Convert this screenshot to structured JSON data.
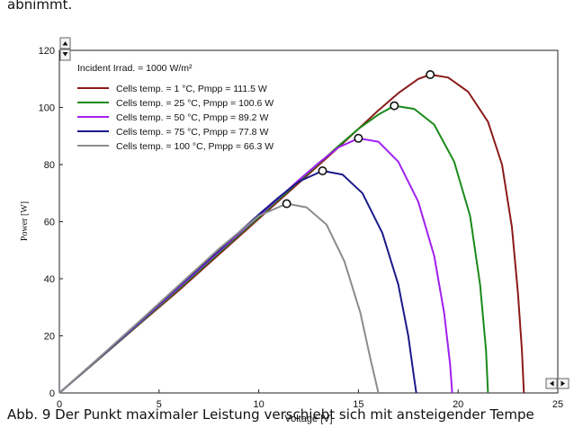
{
  "document": {
    "top_text": "abnimmt.",
    "caption": "Abb. 9 Der Punkt maximaler Leistung verschiebt sich mit ansteigender Tempe"
  },
  "chart_data": {
    "type": "line",
    "title": "",
    "xlabel": "Voltage [V]",
    "ylabel": "Power [W]",
    "xlim": [
      0,
      25
    ],
    "ylim": [
      0,
      120
    ],
    "xticks": [
      0,
      5,
      10,
      15,
      20,
      25
    ],
    "yticks": [
      0,
      20,
      40,
      60,
      80,
      100,
      120
    ],
    "grid": false,
    "legend_position": "top-left",
    "legend_header": "Incident Irrad. = 1000 W/m²",
    "series": [
      {
        "name": "Cells temp. = 1 °C,  Pmpp = 111.5 W",
        "color": "#8b1a1a",
        "mpp": [
          18.6,
          111.5
        ],
        "points": [
          [
            0,
            0
          ],
          [
            2,
            12
          ],
          [
            4,
            24
          ],
          [
            6,
            36
          ],
          [
            8,
            48.5
          ],
          [
            10,
            61
          ],
          [
            12,
            73.5
          ],
          [
            14,
            86
          ],
          [
            15,
            92.5
          ],
          [
            16,
            99
          ],
          [
            17,
            105
          ],
          [
            18,
            110
          ],
          [
            18.6,
            111.5
          ],
          [
            19.5,
            110.5
          ],
          [
            20.5,
            105.5
          ],
          [
            21.5,
            95
          ],
          [
            22.2,
            80
          ],
          [
            22.7,
            58
          ],
          [
            23.0,
            35
          ],
          [
            23.2,
            15
          ],
          [
            23.3,
            0
          ]
        ]
      },
      {
        "name": "Cells temp. = 25 °C,  Pmpp = 100.6 W",
        "color": "#1a8a1a",
        "mpp": [
          16.8,
          100.6
        ],
        "points": [
          [
            0,
            0
          ],
          [
            2,
            12
          ],
          [
            4,
            24.2
          ],
          [
            6,
            36.5
          ],
          [
            8,
            49
          ],
          [
            10,
            61.5
          ],
          [
            12,
            74
          ],
          [
            14,
            86.5
          ],
          [
            15,
            92.5
          ],
          [
            16,
            97.5
          ],
          [
            16.8,
            100.6
          ],
          [
            17.8,
            99.5
          ],
          [
            18.8,
            94
          ],
          [
            19.8,
            81
          ],
          [
            20.6,
            62
          ],
          [
            21.1,
            38
          ],
          [
            21.4,
            15
          ],
          [
            21.5,
            0
          ]
        ]
      },
      {
        "name": "Cells temp. = 50 °C,  Pmpp = 89.2 W",
        "color": "#a020f0",
        "mpp": [
          15.0,
          89.2
        ],
        "points": [
          [
            0,
            0
          ],
          [
            2,
            12.2
          ],
          [
            4,
            24.5
          ],
          [
            6,
            37
          ],
          [
            8,
            49.5
          ],
          [
            10,
            62
          ],
          [
            12,
            74.5
          ],
          [
            13,
            80.5
          ],
          [
            14,
            86
          ],
          [
            15,
            89.2
          ],
          [
            16,
            88
          ],
          [
            17,
            81
          ],
          [
            18,
            67
          ],
          [
            18.8,
            48
          ],
          [
            19.3,
            28
          ],
          [
            19.6,
            10
          ],
          [
            19.7,
            0
          ]
        ]
      },
      {
        "name": "Cells temp. = 75 °C,  Pmpp = 77.8 W",
        "color": "#1a1a8a",
        "mpp": [
          13.2,
          77.8
        ],
        "points": [
          [
            0,
            0
          ],
          [
            2,
            12.3
          ],
          [
            4,
            24.8
          ],
          [
            6,
            37.5
          ],
          [
            8,
            50
          ],
          [
            10,
            62.5
          ],
          [
            11,
            68.5
          ],
          [
            12,
            74
          ],
          [
            13.2,
            77.8
          ],
          [
            14.2,
            76.5
          ],
          [
            15.2,
            70
          ],
          [
            16.2,
            56
          ],
          [
            17,
            38
          ],
          [
            17.5,
            20
          ],
          [
            17.8,
            5
          ],
          [
            17.9,
            0
          ]
        ]
      },
      {
        "name": "Cells temp. = 100 °C,  Pmpp = 66.3 W",
        "color": "#8c8c8c",
        "mpp": [
          11.4,
          66.3
        ],
        "points": [
          [
            0,
            0
          ],
          [
            2,
            12.4
          ],
          [
            4,
            25
          ],
          [
            6,
            37.8
          ],
          [
            8,
            50.5
          ],
          [
            10,
            62
          ],
          [
            11.4,
            66.3
          ],
          [
            12.4,
            65
          ],
          [
            13.4,
            59
          ],
          [
            14.3,
            46
          ],
          [
            15.1,
            28
          ],
          [
            15.6,
            12
          ],
          [
            16.0,
            0
          ]
        ]
      }
    ]
  }
}
